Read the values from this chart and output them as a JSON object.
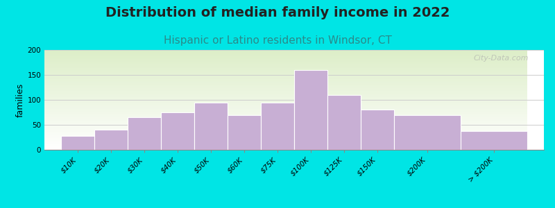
{
  "title": "Distribution of median family income in 2022",
  "subtitle": "Hispanic or Latino residents in Windsor, CT",
  "ylabel": "families",
  "background_outer": "#00e5e5",
  "background_inner_top": "#ddeec8",
  "background_inner_bottom": "#ffffff",
  "bar_color": "#c8afd4",
  "bar_edge_color": "#ffffff",
  "categories": [
    "$10K",
    "$20K",
    "$30K",
    "$40K",
    "$50K",
    "$60K",
    "$75K",
    "$100K",
    "$125K",
    "$150K",
    "$200K",
    "> $200K"
  ],
  "values": [
    28,
    40,
    65,
    75,
    95,
    70,
    95,
    160,
    110,
    80,
    70,
    37
  ],
  "bar_lefts": [
    0,
    1,
    2,
    3,
    4,
    5,
    6,
    7,
    8,
    9,
    10,
    12
  ],
  "bar_widths": [
    1,
    1,
    1,
    1,
    1,
    1,
    1,
    1,
    1,
    1,
    2,
    2
  ],
  "ylim": [
    0,
    200
  ],
  "yticks": [
    0,
    50,
    100,
    150,
    200
  ],
  "title_fontsize": 14,
  "subtitle_fontsize": 11,
  "ylabel_fontsize": 9,
  "tick_fontsize": 7.5,
  "watermark": "City-Data.com"
}
